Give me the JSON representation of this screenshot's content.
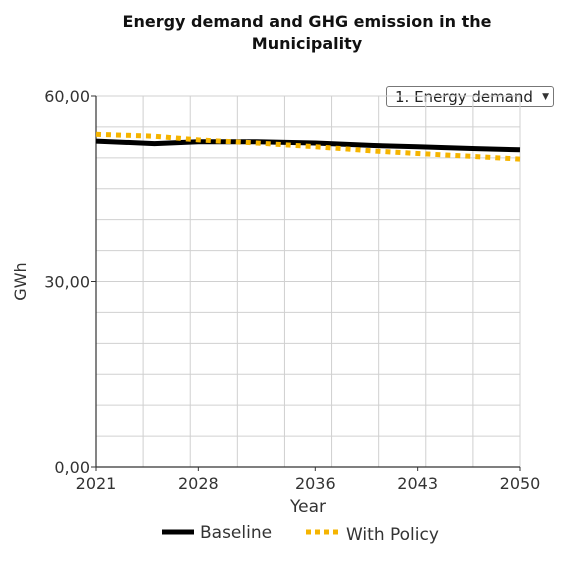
{
  "title": "Energy demand and GHG emission in the\nMunicipality",
  "selector": {
    "selected": "1. Energy demand"
  },
  "colors": {
    "baseline": "#000000",
    "with_policy": "#f5b400",
    "grid": "#d0d0d0"
  },
  "chart_data": {
    "type": "line",
    "xlabel": "Year",
    "ylabel": "GWh",
    "xlim": [
      2021,
      2050
    ],
    "ylim": [
      0,
      60
    ],
    "x_ticks": [
      2021,
      2028,
      2036,
      2043,
      2050
    ],
    "x_tick_labels": [
      "2021",
      "2028",
      "2036",
      "2043",
      "2050"
    ],
    "y_ticks": [
      0,
      30,
      60
    ],
    "y_tick_labels": [
      "0,00",
      "30,00",
      "60,00"
    ],
    "grid": true,
    "legend_position": "bottom",
    "series": [
      {
        "name": "Baseline",
        "style": "solid",
        "x": [
          2021,
          2025,
          2028,
          2032,
          2036,
          2040,
          2043,
          2047,
          2050
        ],
        "values": [
          52.7,
          52.3,
          52.6,
          52.6,
          52.4,
          52.0,
          51.8,
          51.5,
          51.3
        ]
      },
      {
        "name": "With Policy",
        "style": "dotted",
        "x": [
          2021,
          2025,
          2028,
          2032,
          2036,
          2040,
          2043,
          2047,
          2050
        ],
        "values": [
          53.8,
          53.5,
          52.9,
          52.4,
          51.8,
          51.1,
          50.7,
          50.2,
          49.8
        ]
      }
    ]
  }
}
